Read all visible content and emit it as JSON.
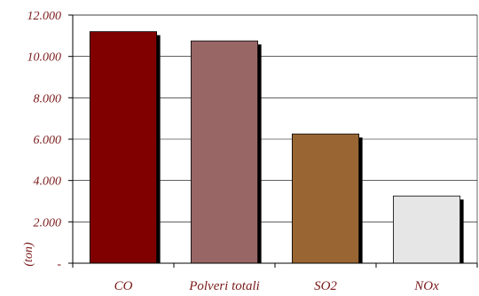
{
  "chart_data": {
    "type": "bar",
    "categories": [
      "CO",
      "Polveri totali",
      "SO2",
      "NOx"
    ],
    "values": [
      11200,
      10750,
      6250,
      3250
    ],
    "colors": [
      "#800000",
      "#996666",
      "#996633",
      "#e6e6e6"
    ],
    "ylim": [
      0,
      12000
    ],
    "yticks": [
      0,
      2000,
      4000,
      6000,
      8000,
      10000,
      12000
    ],
    "ytick_labels": [
      "-",
      "2.000",
      "4.000",
      "6.000",
      "8.000",
      "10.000",
      "12.000"
    ],
    "ylabel": "(ton)",
    "grid": true,
    "shadow": true
  }
}
